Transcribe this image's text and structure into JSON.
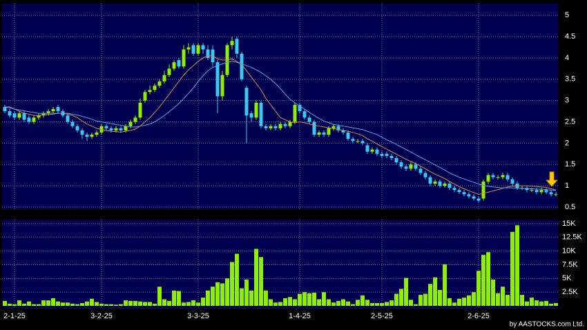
{
  "chart_data": {
    "type": "candlestick",
    "categories": [
      null,
      null,
      "2-1-25",
      null,
      null,
      null,
      null,
      null,
      null,
      null,
      null,
      null,
      null,
      null,
      null,
      null,
      null,
      null,
      null,
      null,
      "3-2-25",
      null,
      null,
      null,
      null,
      null,
      null,
      null,
      null,
      null,
      null,
      null,
      null,
      null,
      null,
      null,
      null,
      null,
      null,
      null,
      "3-3-25",
      null,
      null,
      null,
      null,
      null,
      null,
      null,
      null,
      null,
      null,
      null,
      null,
      null,
      null,
      null,
      null,
      null,
      null,
      null,
      null,
      "1-4-25",
      null,
      null,
      null,
      null,
      null,
      null,
      null,
      null,
      null,
      null,
      null,
      null,
      null,
      null,
      null,
      null,
      "2-5-25",
      null,
      null,
      null,
      null,
      null,
      null,
      null,
      null,
      null,
      null,
      null,
      null,
      null,
      null,
      null,
      null,
      null,
      null,
      null,
      "2-6-25",
      null,
      null,
      null,
      null,
      null,
      null,
      null,
      null,
      null,
      null,
      null,
      null,
      null,
      null,
      null,
      null
    ],
    "open": [
      2.85,
      2.75,
      2.7,
      2.6,
      2.7,
      2.6,
      2.5,
      2.6,
      2.65,
      2.7,
      2.75,
      2.85,
      2.75,
      2.65,
      2.5,
      2.4,
      2.3,
      2.2,
      2.15,
      2.2,
      2.25,
      2.4,
      2.35,
      2.3,
      2.35,
      2.3,
      2.4,
      2.5,
      2.6,
      3.0,
      3.2,
      3.25,
      3.35,
      3.45,
      3.6,
      3.75,
      3.95,
      3.8,
      4.2,
      4.3,
      4.1,
      4.3,
      4.2,
      4.2,
      3.9,
      3.1,
      3.6,
      4.3,
      4.45,
      4.1,
      3.3,
      2.7,
      2.6,
      2.95,
      2.4,
      2.35,
      2.4,
      2.35,
      2.45,
      2.4,
      2.5,
      2.9,
      2.75,
      2.6,
      2.5,
      2.2,
      2.25,
      2.2,
      2.35,
      2.4,
      2.3,
      2.25,
      2.1,
      2.05,
      2.05,
      1.95,
      1.8,
      1.85,
      1.75,
      1.75,
      1.7,
      1.65,
      1.55,
      1.45,
      1.4,
      1.5,
      1.4,
      1.3,
      1.2,
      1.05,
      1.1,
      1.0,
      1.05,
      0.95,
      0.9,
      0.85,
      0.8,
      0.75,
      0.7,
      0.7,
      1.1,
      1.25,
      1.2,
      1.2,
      1.25,
      1.15,
      1.05,
      0.95,
      0.95,
      0.9,
      0.9,
      0.85,
      0.9,
      0.85,
      0.8
    ],
    "high": [
      2.9,
      2.8,
      2.75,
      2.75,
      2.75,
      2.65,
      2.65,
      2.7,
      2.75,
      2.8,
      2.85,
      2.9,
      2.8,
      2.7,
      2.55,
      2.45,
      2.35,
      2.25,
      2.25,
      2.3,
      2.45,
      2.45,
      2.4,
      2.4,
      2.4,
      2.45,
      2.55,
      2.65,
      3.05,
      3.25,
      3.35,
      3.4,
      3.5,
      3.7,
      3.85,
      3.95,
      4.0,
      4.3,
      4.35,
      4.35,
      4.35,
      4.35,
      4.3,
      4.3,
      3.95,
      3.7,
      4.35,
      4.5,
      4.5,
      4.15,
      3.35,
      2.75,
      3.0,
      3.0,
      2.45,
      2.45,
      2.45,
      2.5,
      2.5,
      2.55,
      2.95,
      2.95,
      2.8,
      2.65,
      2.55,
      2.3,
      2.3,
      2.4,
      2.45,
      2.45,
      2.35,
      2.3,
      2.15,
      2.1,
      2.1,
      2.0,
      1.9,
      1.9,
      1.8,
      1.8,
      1.75,
      1.7,
      1.6,
      1.5,
      1.55,
      1.55,
      1.45,
      1.35,
      1.25,
      1.15,
      1.15,
      1.1,
      1.1,
      1.0,
      0.95,
      0.9,
      0.85,
      0.8,
      0.75,
      1.15,
      1.3,
      1.3,
      1.25,
      1.3,
      1.3,
      1.2,
      1.1,
      1.0,
      1.0,
      0.95,
      0.95,
      0.95,
      0.95,
      0.9,
      0.85
    ],
    "low": [
      2.7,
      2.6,
      2.55,
      2.55,
      2.5,
      2.45,
      2.45,
      2.55,
      2.6,
      2.65,
      2.7,
      2.7,
      2.6,
      2.45,
      2.35,
      2.25,
      2.1,
      2.05,
      2.1,
      2.15,
      2.2,
      2.3,
      2.25,
      2.25,
      2.25,
      2.25,
      2.35,
      2.45,
      2.55,
      2.95,
      3.15,
      3.2,
      3.3,
      3.4,
      3.55,
      3.7,
      3.75,
      3.75,
      4.1,
      4.05,
      4.05,
      4.1,
      3.95,
      3.8,
      2.7,
      3.0,
      3.55,
      4.2,
      4.0,
      3.45,
      2.0,
      2.5,
      2.55,
      2.35,
      2.3,
      2.3,
      2.3,
      2.3,
      2.35,
      2.35,
      2.45,
      2.7,
      2.55,
      2.45,
      2.15,
      2.15,
      2.15,
      2.15,
      2.3,
      2.25,
      2.2,
      2.05,
      2.0,
      2.0,
      1.95,
      1.75,
      1.75,
      1.7,
      1.65,
      1.65,
      1.6,
      1.5,
      1.4,
      1.35,
      1.35,
      1.35,
      1.25,
      1.15,
      1.0,
      1.0,
      0.95,
      0.95,
      0.9,
      0.85,
      0.8,
      0.75,
      0.7,
      0.65,
      0.6,
      0.65,
      1.05,
      1.15,
      1.15,
      1.15,
      1.1,
      1.0,
      0.9,
      0.9,
      0.85,
      0.85,
      0.8,
      0.8,
      0.8,
      0.75,
      0.75
    ],
    "close": [
      2.75,
      2.65,
      2.6,
      2.7,
      2.55,
      2.5,
      2.6,
      2.65,
      2.7,
      2.75,
      2.8,
      2.75,
      2.65,
      2.5,
      2.4,
      2.3,
      2.2,
      2.15,
      2.2,
      2.25,
      2.4,
      2.35,
      2.3,
      2.35,
      2.3,
      2.4,
      2.5,
      2.6,
      2.95,
      3.2,
      3.25,
      3.35,
      3.45,
      3.6,
      3.75,
      3.9,
      3.8,
      4.2,
      4.25,
      4.1,
      4.3,
      4.2,
      4.0,
      3.9,
      3.1,
      3.6,
      4.3,
      4.4,
      4.1,
      3.5,
      2.65,
      2.6,
      2.95,
      2.4,
      2.35,
      2.4,
      2.35,
      2.45,
      2.4,
      2.5,
      2.9,
      2.75,
      2.6,
      2.5,
      2.2,
      2.25,
      2.2,
      2.35,
      2.4,
      2.3,
      2.25,
      2.1,
      2.05,
      2.05,
      2.0,
      1.8,
      1.85,
      1.75,
      1.7,
      1.7,
      1.65,
      1.55,
      1.45,
      1.4,
      1.5,
      1.4,
      1.3,
      1.2,
      1.05,
      1.1,
      1.0,
      1.05,
      0.95,
      0.9,
      0.85,
      0.8,
      0.75,
      0.7,
      0.65,
      1.1,
      1.25,
      1.2,
      1.2,
      1.25,
      1.15,
      1.05,
      0.95,
      0.95,
      0.9,
      0.9,
      0.85,
      0.9,
      0.85,
      0.8,
      0.8
    ],
    "up_color": "#8cf000",
    "down_color": "#3cc8f0",
    "ylim": [
      0.45,
      5.28
    ],
    "yticks": [
      0.5,
      1,
      1.5,
      2,
      2.5,
      3,
      3.5,
      4,
      4.5,
      5
    ],
    "grid": true,
    "moving_averages": [
      {
        "color": "#e0873a",
        "values": [
          2.85,
          2.85,
          2.8,
          2.75,
          2.7,
          2.68,
          2.65,
          2.65,
          2.66,
          2.67,
          2.68,
          2.7,
          2.7,
          2.68,
          2.65,
          2.6,
          2.52,
          2.45,
          2.4,
          2.35,
          2.32,
          2.3,
          2.28,
          2.27,
          2.26,
          2.28,
          2.3,
          2.33,
          2.4,
          2.5,
          2.6,
          2.72,
          2.85,
          3.0,
          3.15,
          3.3,
          3.45,
          3.6,
          3.72,
          3.82,
          3.92,
          4.0,
          4.05,
          4.05,
          3.98,
          3.95,
          3.95,
          3.98,
          3.92,
          3.85,
          3.7,
          3.55,
          3.4,
          3.25,
          3.05,
          2.9,
          2.75,
          2.6,
          2.55,
          2.5,
          2.48,
          2.5,
          2.48,
          2.45,
          2.42,
          2.4,
          2.38,
          2.36,
          2.34,
          2.32,
          2.3,
          2.28,
          2.25,
          2.22,
          2.18,
          2.1,
          2.05,
          1.98,
          1.92,
          1.86,
          1.8,
          1.74,
          1.68,
          1.62,
          1.57,
          1.52,
          1.46,
          1.4,
          1.33,
          1.27,
          1.22,
          1.17,
          1.1,
          1.04,
          0.98,
          0.93,
          0.88,
          0.84,
          0.8,
          0.82,
          0.85,
          0.88,
          0.91,
          0.94,
          0.97,
          0.99,
          1.0,
          1.0,
          1.0,
          0.99,
          0.98,
          0.97,
          0.96,
          0.93,
          0.9
        ]
      },
      {
        "color": "#4fa6e6",
        "values": [
          2.85,
          2.83,
          2.8,
          2.78,
          2.76,
          2.74,
          2.72,
          2.7,
          2.7,
          2.7,
          2.7,
          2.7,
          2.7,
          2.7,
          2.68,
          2.66,
          2.63,
          2.6,
          2.56,
          2.52,
          2.5,
          2.48,
          2.46,
          2.44,
          2.42,
          2.4,
          2.38,
          2.38,
          2.4,
          2.42,
          2.45,
          2.5,
          2.57,
          2.65,
          2.74,
          2.83,
          2.93,
          3.05,
          3.17,
          3.3,
          3.45,
          3.58,
          3.7,
          3.78,
          3.82,
          3.86,
          3.9,
          3.92,
          3.9,
          3.86,
          3.82,
          3.78,
          3.72,
          3.66,
          3.58,
          3.5,
          3.4,
          3.28,
          3.15,
          3.03,
          2.95,
          2.87,
          2.8,
          2.72,
          2.65,
          2.58,
          2.52,
          2.48,
          2.44,
          2.42,
          2.4,
          2.38,
          2.36,
          2.34,
          2.32,
          2.28,
          2.24,
          2.2,
          2.14,
          2.08,
          2.03,
          1.97,
          1.91,
          1.85,
          1.79,
          1.73,
          1.67,
          1.61,
          1.55,
          1.49,
          1.43,
          1.37,
          1.3,
          1.25,
          1.2,
          1.16,
          1.12,
          1.08,
          1.04,
          1.01,
          0.99,
          0.97,
          0.96,
          0.95,
          0.95,
          0.95,
          0.94,
          0.94,
          0.93,
          0.93,
          0.92,
          0.92,
          0.91,
          0.9,
          0.89
        ]
      }
    ],
    "volume": {
      "type": "bar",
      "color": "#8cf000",
      "values": [
        900,
        400,
        300,
        1000,
        400,
        800,
        300,
        300,
        1000,
        1000,
        1400,
        800,
        600,
        600,
        400,
        300,
        500,
        800,
        1300,
        700,
        400,
        300,
        300,
        200,
        300,
        1000,
        900,
        900,
        800,
        700,
        700,
        400,
        3500,
        1200,
        900,
        2800,
        2700,
        600,
        700,
        1000,
        600,
        1500,
        2800,
        3500,
        4300,
        4100,
        5000,
        8000,
        9500,
        3200,
        4800,
        2800,
        10400,
        8900,
        2800,
        1200,
        600,
        700,
        1400,
        1600,
        1200,
        2200,
        2500,
        2300,
        2400,
        1200,
        2500,
        1200,
        600,
        900,
        1200,
        800,
        300,
        1100,
        1900,
        1100,
        500,
        500,
        500,
        700,
        1000,
        2200,
        3100,
        5100,
        1100,
        300,
        2000,
        2200,
        4000,
        5200,
        2900,
        7600,
        1400,
        600,
        1300,
        1500,
        1900,
        2500,
        6400,
        9300,
        9800,
        4800,
        2300,
        3500,
        2000,
        13500,
        14700,
        2000,
        800,
        1500,
        1000,
        800,
        900,
        400,
        500
      ],
      "ylim": [
        0,
        15750
      ],
      "yticks": [
        {
          "value": 2500,
          "label": "2.5K"
        },
        {
          "value": 5000,
          "label": "5K"
        },
        {
          "value": 7500,
          "label": "7.5K"
        },
        {
          "value": 10000,
          "label": "10K"
        },
        {
          "value": 12500,
          "label": "12.5K"
        },
        {
          "value": 15000,
          "label": "15K"
        }
      ]
    },
    "copyright": "by AASTOCKS.com Ltd."
  }
}
